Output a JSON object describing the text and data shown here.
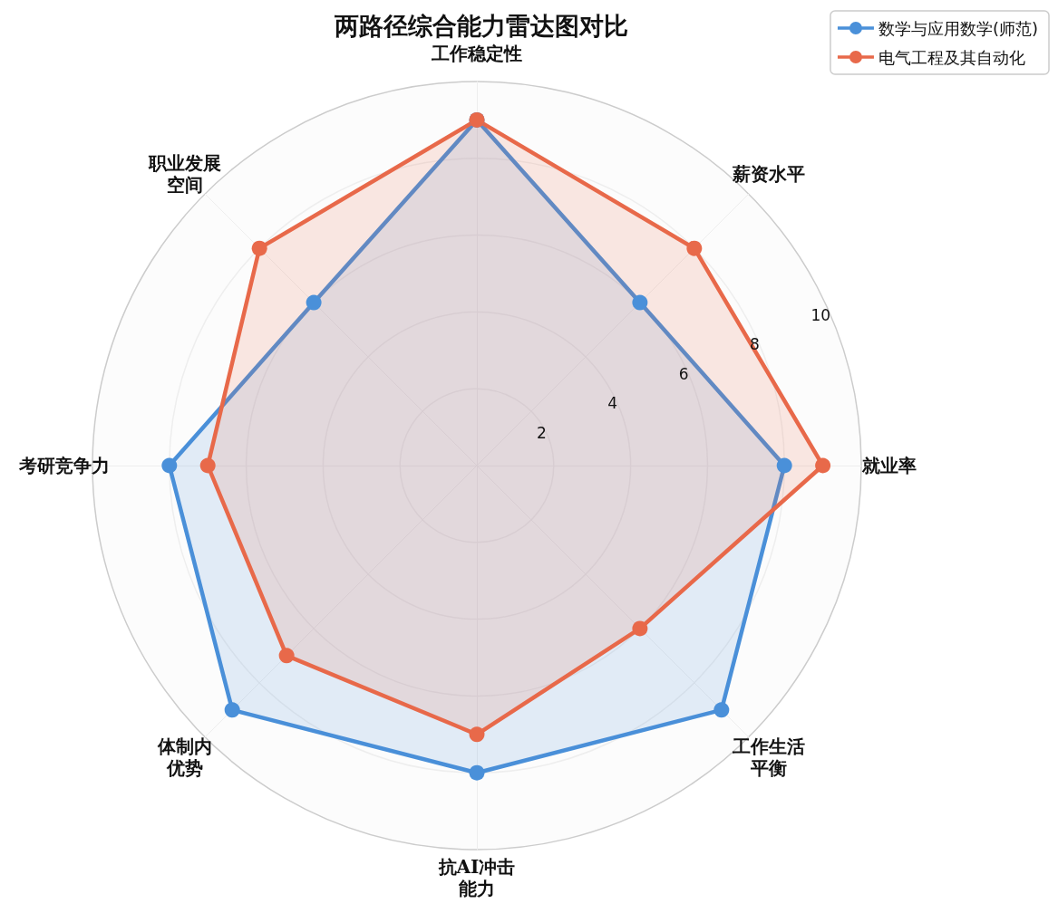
{
  "chart_data": {
    "type": "radar",
    "title": "两路径综合能力雷达图对比",
    "categories": [
      "工作稳定性",
      "薪资水平",
      "就业率",
      "工作生活平衡",
      "抗AI冲击能力",
      "体制内优势",
      "考研竞争力",
      "职业发展空间"
    ],
    "series": [
      {
        "name": "数学与应用数学(师范)",
        "color": "#4a90d9",
        "values": [
          9,
          6,
          8,
          9,
          8,
          9,
          8,
          6
        ]
      },
      {
        "name": "电气工程及其自动化",
        "color": "#e8694a",
        "values": [
          9,
          8,
          9,
          6,
          7,
          7,
          7,
          8
        ]
      }
    ],
    "ylim": [
      0,
      10
    ],
    "yticks": [
      2,
      4,
      6,
      8,
      10
    ],
    "grid": true,
    "legend": "top right",
    "marker": "circle",
    "line_style": "solid"
  }
}
